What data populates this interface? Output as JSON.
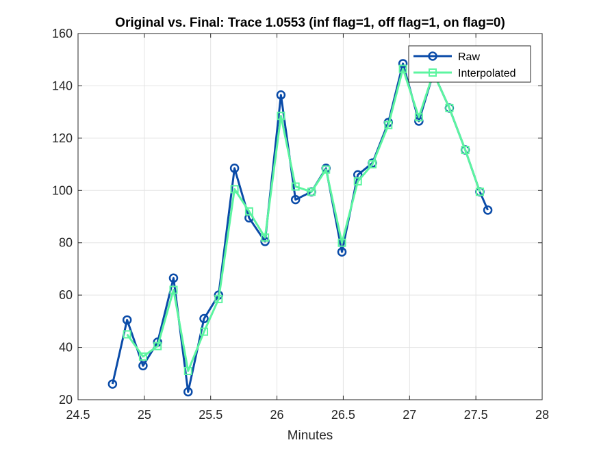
{
  "chart_data": {
    "type": "line",
    "title": "Original vs. Final: Trace 1.0553 (inf flag=1, off flag=1, on flag=0)",
    "xlabel": "Minutes",
    "ylabel": "",
    "xlim": [
      24.5,
      28
    ],
    "ylim": [
      20,
      160
    ],
    "xticks": [
      24.5,
      25,
      25.5,
      26,
      26.5,
      27,
      27.5,
      28
    ],
    "yticks": [
      20,
      40,
      60,
      80,
      100,
      120,
      140,
      160
    ],
    "xtick_labels": [
      "24.5",
      "25",
      "25.5",
      "26",
      "26.5",
      "27",
      "27.5",
      "28"
    ],
    "ytick_labels": [
      "20",
      "40",
      "60",
      "80",
      "100",
      "120",
      "140",
      "160"
    ],
    "grid": true,
    "legend_position": "top-right",
    "series": [
      {
        "name": "Raw",
        "color": "#0a4ba8",
        "marker": "circle",
        "x": [
          24.76,
          24.87,
          24.99,
          25.1,
          25.22,
          25.33,
          25.45,
          25.56,
          25.68,
          25.79,
          25.91,
          26.03,
          26.14,
          26.26,
          26.37,
          26.49,
          26.61,
          26.72,
          26.84,
          26.95,
          27.07,
          27.18,
          27.3,
          27.42,
          27.53,
          27.59
        ],
        "y": [
          26,
          50.5,
          33,
          42,
          66.5,
          23,
          51,
          60,
          108.5,
          89.5,
          80.5,
          136.5,
          96.5,
          99.5,
          108.5,
          76.5,
          106,
          110.5,
          126,
          148.5,
          126.5,
          145,
          131.5,
          115.5,
          99.5,
          92.5
        ]
      },
      {
        "name": "Interpolated",
        "color": "#5cf5a0",
        "marker": "square",
        "x": [
          24.87,
          24.99,
          25.1,
          25.22,
          25.33,
          25.45,
          25.56,
          25.68,
          25.79,
          25.91,
          26.03,
          26.14,
          26.26,
          26.37,
          26.49,
          26.61,
          26.72,
          26.84,
          26.95,
          27.07,
          27.18,
          27.3,
          27.42,
          27.53
        ],
        "y": [
          45,
          36.5,
          40.5,
          62,
          31,
          46,
          58.5,
          100.5,
          92,
          82,
          128.5,
          101.5,
          99.5,
          108,
          80,
          103.5,
          110,
          125,
          146.5,
          128,
          145,
          131.5,
          115.5,
          99.5
        ]
      }
    ]
  }
}
